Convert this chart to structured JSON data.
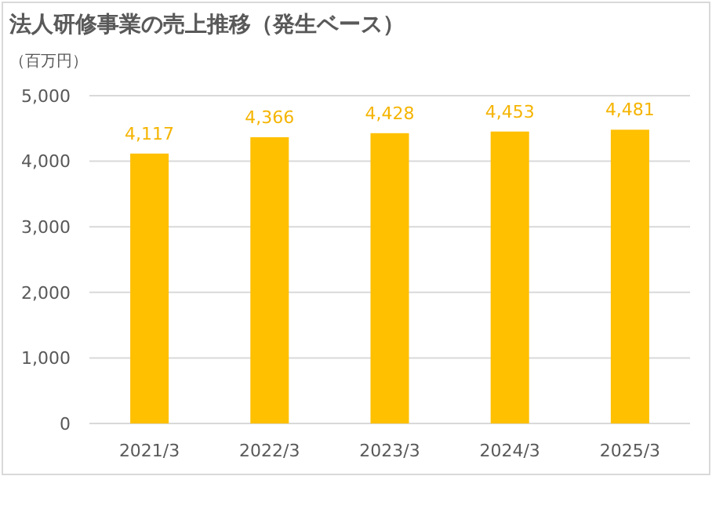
{
  "chart_data": {
    "type": "bar",
    "title": "法人研修事業の売上推移（発生ベース）",
    "ylabel": "（百万円）",
    "categories": [
      "2021/3",
      "2022/3",
      "2023/3",
      "2024/3",
      "2025/3"
    ],
    "values": [
      4117,
      4366,
      4428,
      4453,
      4481
    ],
    "color": "#ffc000",
    "value_labels": [
      "4,117",
      "4,366",
      "4,428",
      "4,453",
      "4,481"
    ],
    "ylim": [
      0,
      5000
    ],
    "yticks": [
      {
        "value": 0,
        "label": "0"
      },
      {
        "value": 1000,
        "label": "1,000"
      },
      {
        "value": 2000,
        "label": "2,000"
      },
      {
        "value": 3000,
        "label": "3,000"
      },
      {
        "value": 4000,
        "label": "4,000"
      },
      {
        "value": 5000,
        "label": "5,000"
      }
    ],
    "grid": "y"
  }
}
